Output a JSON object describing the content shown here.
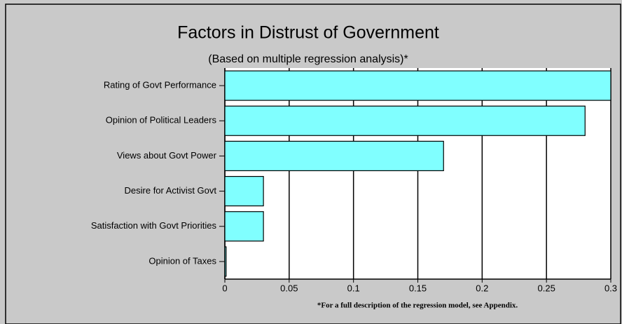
{
  "chart_data": {
    "type": "bar",
    "orientation": "horizontal",
    "title": "Factors in Distrust of Government",
    "subtitle": "(Based on multiple regression analysis)*",
    "footnote": "*For a full description of the regression model, see Appendix.",
    "categories": [
      "Rating of Govt Performance",
      "Opinion of Political Leaders",
      "Views about Govt Power",
      "Desire for Activist Govt",
      "Satisfaction with Govt Priorities",
      "Opinion of Taxes"
    ],
    "values": [
      0.3,
      0.28,
      0.17,
      0.03,
      0.03,
      0.001
    ],
    "color": "#80ffff",
    "xlim": [
      0,
      0.3
    ],
    "xticks": [
      0,
      0.05,
      0.1,
      0.15,
      0.2,
      0.25,
      0.3
    ],
    "grid": true
  }
}
